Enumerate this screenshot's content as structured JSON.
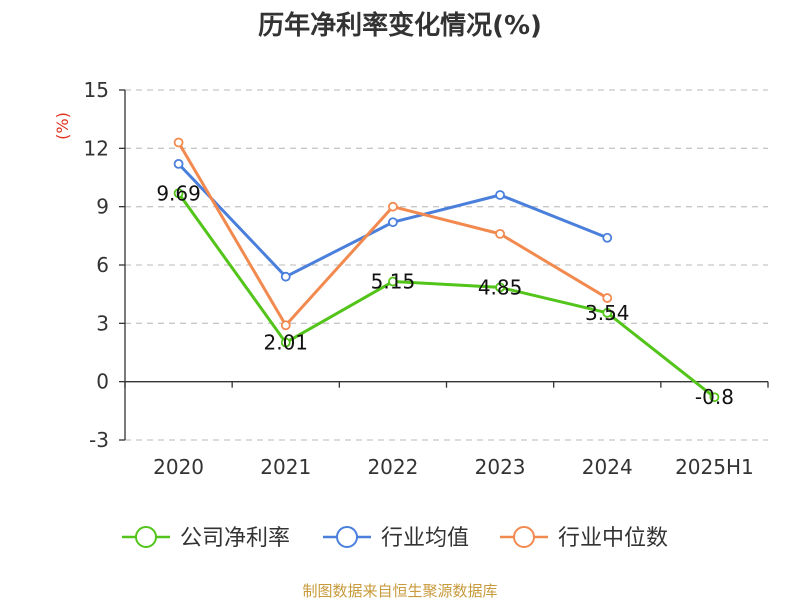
{
  "colors": {
    "title": "#333333",
    "axis": "#333333",
    "grid": "#c8c8c8",
    "unit": "#e0301e",
    "source": "#c89a3c"
  },
  "chart_data": {
    "type": "line",
    "title": "历年净利率变化情况(%)",
    "ylabel": "(%)",
    "xlabel": "",
    "categories": [
      "2020",
      "2021",
      "2022",
      "2023",
      "2024",
      "2025H1"
    ],
    "ylim": [
      -3,
      15
    ],
    "yticks": [
      -3,
      0,
      3,
      6,
      9,
      12,
      15
    ],
    "grid": true,
    "legend_position": "bottom",
    "series": [
      {
        "name": "公司净利率",
        "color": "#52c41a",
        "values": [
          9.69,
          2.01,
          5.15,
          4.85,
          3.54,
          -0.8
        ],
        "data_labels": [
          "9.69",
          "2.01",
          "5.15",
          "4.85",
          "3.54",
          "-0.8"
        ]
      },
      {
        "name": "行业均值",
        "color": "#4a7fdc",
        "values": [
          11.2,
          5.4,
          8.2,
          9.6,
          7.4,
          null
        ]
      },
      {
        "name": "行业中位数",
        "color": "#f28a50",
        "values": [
          12.3,
          2.9,
          9.0,
          7.6,
          4.3,
          null
        ]
      }
    ]
  },
  "source_text": "制图数据来自恒生聚源数据库"
}
